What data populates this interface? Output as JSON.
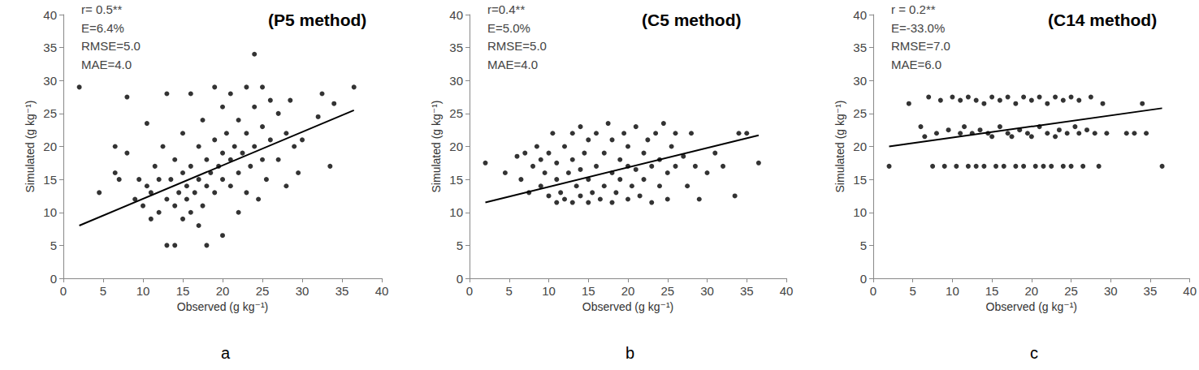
{
  "chart_data": [
    {
      "type": "scatter",
      "title": "(P5 method)",
      "panel_label": "a",
      "x_label": "Observed (g kg⁻¹)",
      "y_label": "Simulated (g kg⁻¹)",
      "annotations": [
        "r= 0.5**",
        "E=6.4%",
        "RMSE=5.0",
        "MAE=4.0"
      ],
      "xlim": [
        0,
        40
      ],
      "ylim": [
        0,
        40
      ],
      "xticks": [
        0,
        5,
        10,
        15,
        20,
        25,
        30,
        35,
        40
      ],
      "yticks": [
        0,
        5,
        10,
        15,
        20,
        25,
        30,
        35,
        40
      ],
      "grid": false,
      "color": "#000000",
      "marker": "circle",
      "x": [
        2,
        4.5,
        6.5,
        6.5,
        7,
        8,
        8,
        9,
        9.5,
        10,
        10.5,
        10.5,
        11,
        11,
        11.5,
        12,
        12,
        12.5,
        13,
        13,
        13,
        13.5,
        14,
        14,
        14,
        14.5,
        15,
        15,
        15,
        15.5,
        15.5,
        16,
        16,
        16,
        16.5,
        17,
        17,
        17,
        17.5,
        17.5,
        18,
        18,
        18,
        18.5,
        19,
        19,
        19,
        19.5,
        20,
        20,
        20,
        20,
        20.5,
        21,
        21,
        21,
        21.5,
        22,
        22,
        22,
        22.5,
        23,
        23,
        23,
        23.5,
        24,
        24,
        24,
        24.5,
        25,
        25,
        25,
        25.5,
        26,
        26,
        27,
        27,
        28,
        28,
        28.5,
        29,
        29.5,
        30,
        32,
        32.5,
        33.5,
        34,
        36.5
      ],
      "values": [
        29,
        13,
        16,
        20,
        15,
        19,
        27.5,
        12,
        15,
        11,
        23.5,
        14,
        9,
        13,
        17,
        10,
        15,
        20,
        5,
        12,
        28,
        15,
        5,
        11,
        18,
        13,
        9,
        16,
        22,
        12,
        14,
        10,
        17,
        28,
        13,
        8,
        15,
        20,
        11,
        24,
        14,
        18,
        5,
        16,
        13,
        21,
        29,
        17,
        6.5,
        15,
        19,
        26,
        22,
        14,
        18,
        28,
        20,
        16,
        24,
        10,
        19,
        13,
        22,
        29,
        17,
        34,
        20,
        26,
        12,
        18,
        23,
        29,
        15,
        21,
        27,
        18,
        25,
        14,
        22,
        27,
        20,
        16,
        21,
        24.5,
        28,
        17,
        26.5,
        29
      ],
      "trend_line": {
        "x": [
          2,
          36.5
        ],
        "values": [
          8,
          25.5
        ],
        "color": "#000000",
        "line_style": "solid"
      }
    },
    {
      "type": "scatter",
      "title": "(C5 method)",
      "panel_label": "b",
      "x_label": "Observed (g kg⁻¹)",
      "y_label": "Simulated (g kg⁻¹)",
      "annotations": [
        "r=0.4**",
        "E=5.0%",
        "RMSE=5.0",
        "MAE=4.0"
      ],
      "xlim": [
        0,
        40
      ],
      "ylim": [
        0,
        40
      ],
      "xticks": [
        0,
        5,
        10,
        15,
        20,
        25,
        30,
        35,
        40
      ],
      "yticks": [
        0,
        5,
        10,
        15,
        20,
        25,
        30,
        35,
        40
      ],
      "grid": false,
      "color": "#000000",
      "marker": "circle",
      "x": [
        2,
        4.5,
        6,
        6.5,
        7,
        7.5,
        8,
        8.5,
        9,
        9,
        9.5,
        10,
        10,
        10.5,
        11,
        11,
        11,
        11.5,
        12,
        12,
        12.5,
        13,
        13,
        13,
        13.5,
        14,
        14,
        14,
        14.5,
        15,
        15,
        15,
        15.5,
        16,
        16,
        16.5,
        17,
        17,
        17.5,
        18,
        18,
        18,
        18.5,
        19,
        19,
        19.5,
        20,
        20,
        20,
        20.5,
        21,
        21,
        21.5,
        22,
        22,
        22.5,
        23,
        23,
        23.5,
        24,
        24,
        24.5,
        25,
        25,
        25.5,
        26,
        26,
        27,
        27.5,
        28,
        28.5,
        29,
        30,
        31,
        32,
        33.5,
        34,
        35,
        36.5
      ],
      "values": [
        17.5,
        16,
        18.5,
        15,
        19,
        13,
        17,
        20,
        14,
        18,
        16,
        12.5,
        19,
        22,
        11.5,
        15,
        17.5,
        13,
        20,
        12,
        16,
        11.5,
        22,
        18,
        14,
        23,
        12.5,
        16.5,
        19,
        11.5,
        15,
        21,
        13,
        17,
        22,
        12,
        14,
        19,
        23.5,
        16,
        11.5,
        21,
        13,
        18,
        15,
        22,
        12,
        17,
        20,
        14,
        16.5,
        23,
        12.5,
        19,
        15,
        21,
        11.5,
        17,
        22,
        14,
        18,
        23.5,
        12,
        16,
        20,
        22,
        17,
        18.5,
        14,
        22,
        17,
        12,
        16,
        19,
        17,
        12.5,
        22,
        22,
        17.5
      ],
      "trend_line": {
        "x": [
          2,
          36.5
        ],
        "values": [
          11.5,
          21.7
        ],
        "color": "#000000",
        "line_style": "solid"
      }
    },
    {
      "type": "scatter",
      "title": "(C14 method)",
      "panel_label": "c",
      "x_label": "Observed (g kg⁻¹)",
      "y_label": "Simulated (g kg⁻¹)",
      "annotations": [
        "r = 0.2**",
        "E=-33.0%",
        "RMSE=7.0",
        "MAE=6.0"
      ],
      "xlim": [
        0,
        40
      ],
      "ylim": [
        0,
        40
      ],
      "xticks": [
        0,
        5,
        10,
        15,
        20,
        25,
        30,
        35,
        40
      ],
      "yticks": [
        0,
        5,
        10,
        15,
        20,
        25,
        30,
        35,
        40
      ],
      "grid": false,
      "color": "#000000",
      "marker": "circle",
      "x": [
        2,
        4.5,
        6,
        6.5,
        7,
        7.5,
        8,
        8.5,
        9,
        9.5,
        10,
        10.5,
        11,
        11,
        11.5,
        12,
        12,
        12.5,
        13,
        13,
        13.5,
        14,
        14,
        14.5,
        15,
        15,
        15.5,
        16,
        16,
        16.5,
        17,
        17,
        17.5,
        18,
        18,
        18.5,
        19,
        19,
        19.5,
        20,
        20,
        20.5,
        21,
        21,
        21.5,
        22,
        22,
        22.5,
        23,
        23,
        23.5,
        24,
        24,
        24.5,
        25,
        25,
        25.5,
        26,
        26,
        26.5,
        27,
        27.5,
        28,
        28.5,
        29,
        29.5,
        32,
        33,
        34,
        34.5,
        36.5
      ],
      "values": [
        17,
        26.5,
        23,
        21.5,
        27.5,
        17,
        22,
        27,
        17,
        22.5,
        27.5,
        17,
        22,
        27,
        23,
        17,
        27.5,
        22,
        17,
        27,
        22.5,
        26.5,
        17,
        22,
        27.5,
        21.5,
        17,
        23,
        27,
        17,
        22,
        27.5,
        21.5,
        17,
        26.5,
        22.5,
        27.5,
        17,
        22,
        27,
        21.5,
        17,
        23,
        27.5,
        17,
        22,
        26.5,
        17,
        27.5,
        21.5,
        22.5,
        17,
        27,
        22,
        27.5,
        17,
        23,
        22,
        27,
        17,
        22.5,
        27.5,
        22,
        17,
        26.5,
        22,
        22,
        22,
        26.5,
        22,
        17
      ],
      "trend_line": {
        "x": [
          2,
          36.5
        ],
        "values": [
          20,
          25.8
        ],
        "color": "#000000",
        "line_style": "solid"
      }
    }
  ]
}
